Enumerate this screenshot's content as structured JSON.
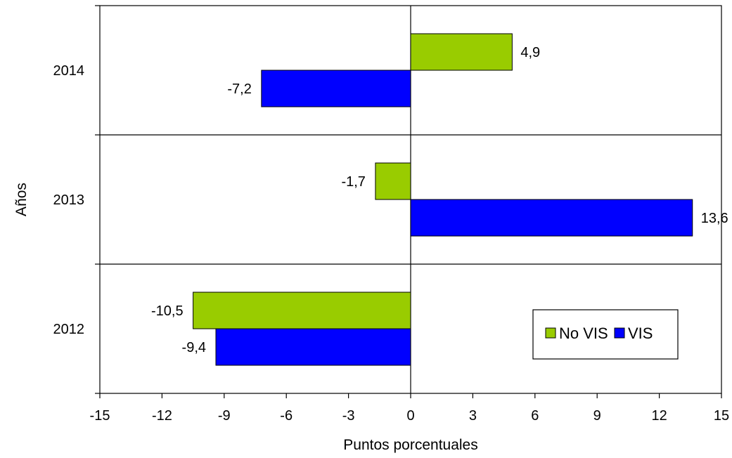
{
  "chart_data": {
    "type": "bar",
    "orientation": "horizontal",
    "categories": [
      "2014",
      "2013",
      "2012"
    ],
    "series": [
      {
        "name": "No VIS",
        "color": "#99CC00",
        "values": [
          4.9,
          -1.7,
          -10.5
        ],
        "labels": [
          "4,9",
          "-1,7",
          "-10,5"
        ]
      },
      {
        "name": "VIS",
        "color": "#0000FF",
        "values": [
          -7.2,
          13.6,
          -9.4
        ],
        "labels": [
          "-7,2",
          "13,6",
          "-9,4"
        ]
      }
    ],
    "xlabel": "Puntos porcentuales",
    "ylabel": "Años",
    "xlim": [
      -15,
      15
    ],
    "xticks": [
      -15,
      -12,
      -9,
      -6,
      -3,
      0,
      3,
      6,
      9,
      12,
      15
    ],
    "xtick_labels": [
      "-15",
      "-12",
      "-9",
      "-6",
      "-3",
      "0",
      "3",
      "6",
      "9",
      "12",
      "15"
    ],
    "grid": "horizontal separators between categories",
    "legend_position": "bottom-right"
  }
}
